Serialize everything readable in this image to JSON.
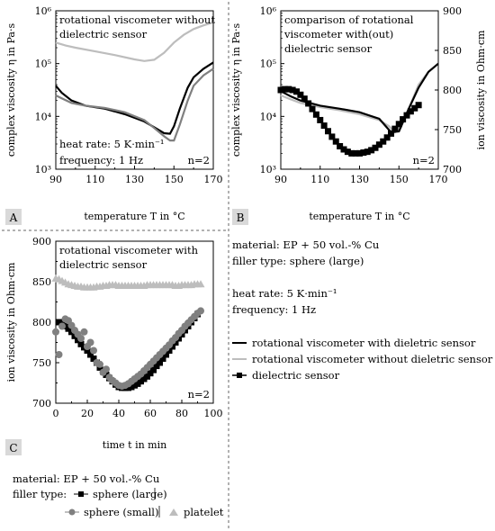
{
  "legend": {
    "material": "material: EP + 50 vol.-% Cu",
    "filler": "filler type: sphere (large)",
    "heat_rate": "heat rate: 5 K·min⁻¹",
    "frequency": "frequency: 1 Hz",
    "entries": [
      "rotational viscometer with dieletric sensor",
      "rotational viscometer without dieletric sensor",
      "dielectric sensor"
    ]
  },
  "bottom_legend": {
    "material": "material: EP + 50 vol.-% Cu",
    "filler_label": "filler type:",
    "entries": [
      "sphere (large)",
      "sphere (small)",
      "platelet"
    ]
  },
  "colors": {
    "black": "#000000",
    "gray": "#808080",
    "lightgray": "#bdbdbd"
  },
  "chart_data": [
    {
      "panel": "A",
      "type": "line",
      "annotation": [
        "rotational viscometer without",
        "dielectric sensor"
      ],
      "notes": [
        "heat rate: 5 K·min⁻¹",
        "frequency: 1 Hz",
        "n=2"
      ],
      "xlabel": "temperature T in °C",
      "ylabel": "complex viscosity η in Pa·s",
      "xlim": [
        90,
        170
      ],
      "ylim_log10": [
        3,
        6
      ],
      "ylog": true,
      "xticks": [
        "90",
        "110",
        "130",
        "150",
        "170"
      ],
      "yticks": [
        "10³",
        "10⁴",
        "10⁵",
        "10⁶"
      ],
      "series": [
        {
          "color": "lightgray",
          "x": [
            90,
            95,
            100,
            110,
            120,
            130,
            135,
            140,
            145,
            150,
            155,
            160,
            165,
            170
          ],
          "y": [
            250000,
            220000,
            200000,
            170000,
            145000,
            120000,
            112000,
            118000,
            160000,
            250000,
            350000,
            450000,
            530000,
            600000
          ]
        },
        {
          "color": "black",
          "x": [
            90,
            93,
            98,
            105,
            115,
            125,
            135,
            140,
            145,
            148,
            150,
            153,
            157,
            160,
            165,
            170
          ],
          "y": [
            38000,
            28000,
            20000,
            16000,
            14000,
            11000,
            8000,
            6200,
            4800,
            4700,
            6500,
            14000,
            35000,
            55000,
            80000,
            105000
          ]
        },
        {
          "color": "gray",
          "x": [
            90,
            93,
            98,
            105,
            115,
            125,
            135,
            140,
            145,
            148,
            150,
            153,
            157,
            160,
            165,
            170
          ],
          "y": [
            25000,
            22000,
            18000,
            16000,
            14500,
            12000,
            8500,
            6000,
            4200,
            3500,
            3500,
            7000,
            20000,
            38000,
            60000,
            80000
          ]
        }
      ]
    },
    {
      "panel": "B",
      "type": "line",
      "annotation": [
        "comparison of rotational",
        "viscometer with(out)",
        "dielectric sensor"
      ],
      "notes": [
        "n=2"
      ],
      "xlabel": "temperature T in °C",
      "ylabel": "complex viscosity η in Pa·s",
      "y2label": "ion viscosity in Ohm·cm",
      "xlim": [
        90,
        170
      ],
      "ylim_log10": [
        3,
        6
      ],
      "y2lim": [
        700,
        900
      ],
      "ylog": true,
      "xticks": [
        "90",
        "110",
        "130",
        "150",
        "170"
      ],
      "yticks": [
        "10³",
        "10⁴",
        "10⁵",
        "10⁶"
      ],
      "y2ticks": [
        "700",
        "750",
        "800",
        "850",
        "900"
      ],
      "series": [
        {
          "color": "lightgray",
          "axis": "left",
          "x": [
            90,
            95,
            100,
            110,
            120,
            130,
            140,
            145,
            148,
            150,
            155,
            160,
            165,
            170
          ],
          "y": [
            25000,
            21000,
            18000,
            15000,
            13000,
            11000,
            8500,
            6500,
            5000,
            6000,
            14000,
            40000,
            70000,
            100000
          ]
        },
        {
          "color": "black",
          "axis": "left",
          "x": [
            90,
            95,
            100,
            110,
            120,
            130,
            140,
            146,
            150,
            155,
            160,
            165,
            170
          ],
          "y": [
            30000,
            24000,
            20000,
            16000,
            14000,
            12000,
            9000,
            5000,
            5200,
            14000,
            35000,
            70000,
            100000
          ]
        },
        {
          "color": "black",
          "axis": "right",
          "marker": "square",
          "x": [
            90,
            92,
            94,
            96,
            98,
            100,
            102,
            104,
            106,
            108,
            110,
            112,
            114,
            116,
            118,
            120,
            122,
            124,
            126,
            128,
            130,
            132,
            134,
            136,
            138,
            140,
            142,
            144,
            146,
            148,
            150,
            152,
            154,
            156,
            158,
            160
          ],
          "y": [
            800,
            801,
            801,
            800,
            798,
            794,
            789,
            783,
            776,
            769,
            762,
            755,
            748,
            741,
            735,
            729,
            725,
            722,
            720,
            720,
            720,
            721,
            722,
            724,
            727,
            731,
            735,
            740,
            745,
            751,
            757,
            763,
            768,
            773,
            777,
            781
          ]
        }
      ]
    },
    {
      "panel": "C",
      "type": "scatter",
      "annotation": [
        "rotational viscometer with",
        "dielectric sensor"
      ],
      "notes": [
        "n=2"
      ],
      "xlabel": "time t in min",
      "ylabel": "ion viscosity in Ohm·cm",
      "xlim": [
        0,
        100
      ],
      "ylim": [
        700,
        900
      ],
      "xticks": [
        "0",
        "20",
        "40",
        "60",
        "80",
        "100"
      ],
      "yticks": [
        "700",
        "750",
        "800",
        "850",
        "900"
      ],
      "series": [
        {
          "color": "lightgray",
          "marker": "triangle",
          "x": [
            0,
            2,
            4,
            6,
            8,
            10,
            12,
            14,
            16,
            18,
            20,
            22,
            24,
            26,
            28,
            30,
            32,
            34,
            36,
            38,
            40,
            42,
            44,
            46,
            48,
            50,
            52,
            54,
            56,
            58,
            60,
            62,
            64,
            66,
            68,
            70,
            72,
            74,
            76,
            78,
            80,
            82,
            84,
            86,
            88,
            90,
            92
          ],
          "y": [
            854,
            853,
            851,
            849,
            847,
            846,
            845,
            844,
            844,
            843,
            843,
            843,
            843,
            844,
            844,
            845,
            845,
            846,
            846,
            846,
            845,
            845,
            845,
            845,
            845,
            845,
            845,
            845,
            845,
            846,
            846,
            846,
            846,
            846,
            846,
            846,
            846,
            846,
            845,
            845,
            846,
            846,
            846,
            846,
            847,
            847,
            847
          ]
        },
        {
          "color": "black",
          "marker": "square",
          "x": [
            2,
            4,
            6,
            8,
            10,
            12,
            14,
            16,
            18,
            20,
            22,
            24,
            26,
            28,
            30,
            32,
            34,
            36,
            38,
            40,
            42,
            44,
            46,
            48,
            50,
            52,
            54,
            56,
            58,
            60,
            62,
            64,
            66,
            68,
            70,
            72,
            74,
            76,
            78,
            80,
            82,
            84,
            86,
            88,
            90
          ],
          "y": [
            800,
            798,
            795,
            792,
            788,
            783,
            778,
            773,
            769,
            765,
            760,
            755,
            750,
            744,
            739,
            735,
            731,
            727,
            723,
            720,
            719,
            719,
            719,
            720,
            722,
            724,
            727,
            730,
            733,
            737,
            741,
            746,
            750,
            755,
            760,
            765,
            770,
            775,
            780,
            785,
            790,
            795,
            800,
            805,
            810
          ]
        },
        {
          "color": "gray",
          "marker": "circle",
          "x": [
            0,
            2,
            4,
            6,
            8,
            10,
            12,
            14,
            16,
            18,
            20,
            22,
            24,
            26,
            28,
            30,
            32,
            34,
            36,
            38,
            40,
            42,
            44,
            46,
            48,
            50,
            52,
            54,
            56,
            58,
            60,
            62,
            64,
            66,
            68,
            70,
            72,
            74,
            76,
            78,
            80,
            82,
            84,
            86,
            88,
            90,
            92
          ],
          "y": [
            788,
            760,
            795,
            804,
            802,
            796,
            790,
            785,
            780,
            788,
            770,
            775,
            765,
            750,
            748,
            738,
            742,
            732,
            728,
            725,
            722,
            721,
            722,
            724,
            727,
            730,
            733,
            736,
            740,
            744,
            748,
            752,
            756,
            760,
            764,
            768,
            772,
            777,
            781,
            786,
            790,
            795,
            799,
            803,
            807,
            811,
            814
          ]
        }
      ]
    }
  ],
  "panel_labels": [
    "A",
    "B",
    "C"
  ]
}
